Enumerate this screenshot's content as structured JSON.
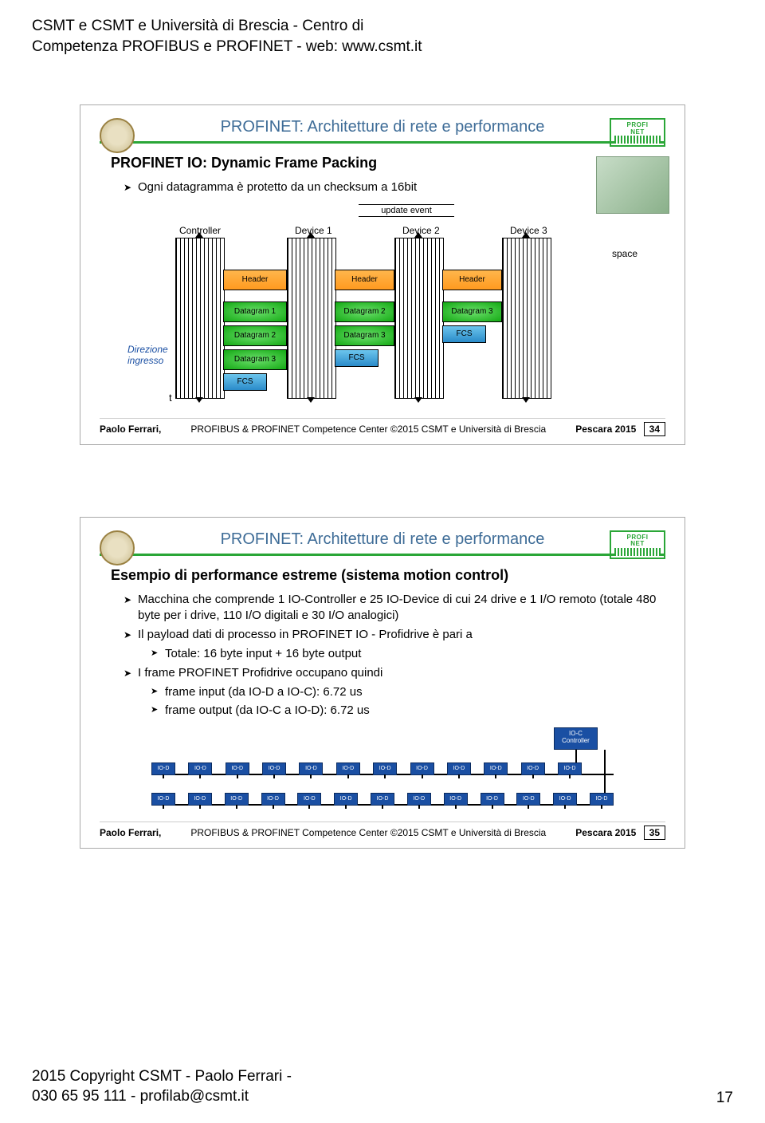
{
  "page_header": {
    "line1": "CSMT e CSMT e Università di Brescia - Centro di",
    "line2": "Competenza PROFIBUS e PROFINET - web: www.csmt.it"
  },
  "slide1": {
    "title": "PROFINET: Architetture di rete e performance",
    "heading": "PROFINET IO: Dynamic Frame Packing",
    "bullet1": "Ogni datagramma è protetto da un checksum a 16bit",
    "update_label": "update event",
    "cols": {
      "controller": "Controller",
      "device1": "Device 1",
      "device2": "Device 2",
      "device3": "Device 3"
    },
    "space_label": "space",
    "hdr": "Header",
    "dg1": "Datagram 1",
    "dg2": "Datagram 2",
    "dg3": "Datagram 3",
    "fcs": "FCS",
    "direction": "Direzione",
    "ingresso": "ingresso",
    "t": "t",
    "footer_author": "Paolo Ferrari,",
    "footer_mid": "PROFIBUS & PROFINET Competence Center ©2015 CSMT e Università di Brescia",
    "footer_right": "Pescara 2015",
    "footer_page": "34",
    "colors": {
      "header_bar": "#ff9a1f",
      "datagram_bar": "#13a913",
      "fcs_bar": "#2a8bc9",
      "title_color": "#3e6c97",
      "underline": "#2aa637"
    }
  },
  "slide2": {
    "title": "PROFINET: Architetture di rete e performance",
    "heading": "Esempio di performance estreme (sistema motion control)",
    "bullets": [
      "Macchina che comprende 1 IO-Controller e 25 IO-Device di cui 24 drive e 1 I/O remoto (totale 480 byte per i drive, 110 I/O digitali e 30 I/O analogici)",
      "Il payload dati di processo in PROFINET IO - Profidrive è pari a",
      "I frame PROFINET Profidrive occupano quindi"
    ],
    "sub_bullets_a": [
      "Totale: 16 byte input + 16 byte output"
    ],
    "sub_bullets_b": [
      "frame input (da IO-D a IO-C): 6.72 us",
      "frame output (da IO-C a IO-D): 6.72 us"
    ],
    "ioc_label": "IO-C\nController",
    "iod_label": "IO-D",
    "iod_count_row1": 12,
    "iod_count_row2": 13,
    "footer_author": "Paolo Ferrari,",
    "footer_mid": "PROFIBUS & PROFINET Competence Center ©2015 CSMT e Università di Brescia",
    "footer_right": "Pescara 2015",
    "footer_page": "35"
  },
  "page_footer": {
    "line1": "2015 Copyright CSMT - Paolo Ferrari -",
    "line2": "030 65 95 111 - profilab@csmt.it",
    "pagenum": "17"
  }
}
